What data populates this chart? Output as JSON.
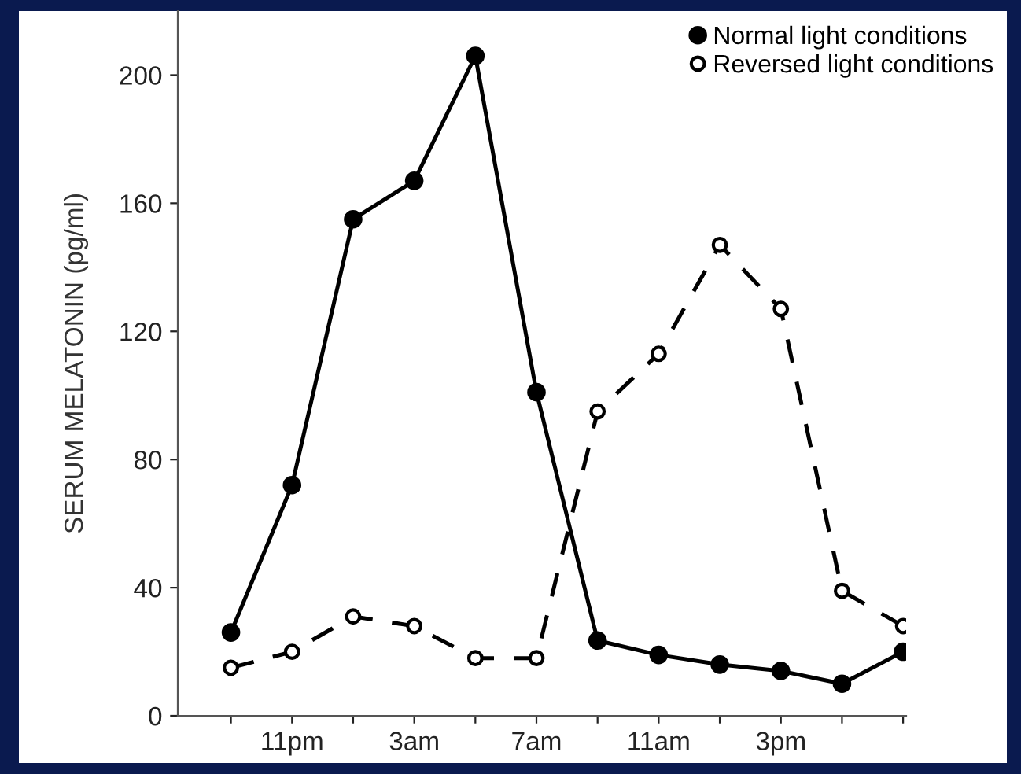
{
  "chart_data": {
    "type": "line",
    "ylabel": "SERUM MELATONIN (pg/ml)",
    "categories": [
      null,
      "11pm",
      null,
      "3am",
      null,
      "7am",
      null,
      "11am",
      null,
      "3pm",
      null,
      null
    ],
    "ylim": [
      0,
      220
    ],
    "yticks": [
      0,
      40,
      80,
      120,
      160,
      200
    ],
    "grid": false,
    "legend": "top right",
    "marker": "circle",
    "series": [
      {
        "name": "Normal light conditions",
        "color": "#000000",
        "line_style": "solid",
        "values": [
          26,
          72,
          155,
          167,
          206,
          101,
          23.5,
          19,
          16,
          14,
          10,
          20
        ]
      },
      {
        "name": "Reversed light conditions",
        "color": "#000000",
        "line_style": "dashed",
        "values": [
          15,
          20,
          31,
          28,
          18,
          18,
          95,
          113,
          147,
          127,
          39,
          28
        ]
      }
    ]
  }
}
